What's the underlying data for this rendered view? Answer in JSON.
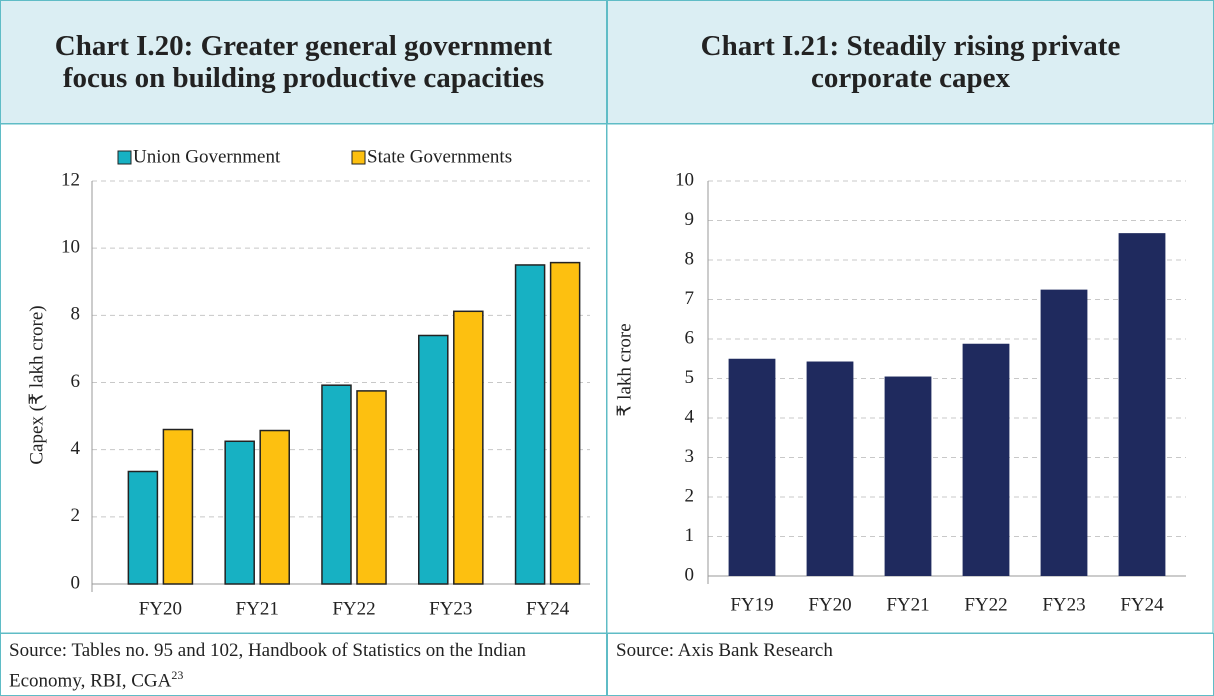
{
  "chart_data": [
    {
      "type": "bar",
      "title": "Chart I.20: Greater general government focus on building productive capacities",
      "source": "Source: Tables no. 95 and 102, Handbook of Statistics on the Indian Economy, RBI, CGA",
      "source_ref": "23",
      "ylabel": "Capex (₹ lakh crore)",
      "categories": [
        "FY20",
        "FY21",
        "FY22",
        "FY23",
        "FY24"
      ],
      "series": [
        {
          "name": "Union Government",
          "color": "#17b1c3",
          "values": [
            3.35,
            4.25,
            5.92,
            7.4,
            9.5
          ]
        },
        {
          "name": "State Governments",
          "color": "#fdc010",
          "values": [
            4.6,
            4.57,
            5.75,
            8.12,
            9.57
          ]
        }
      ],
      "ylim": [
        0,
        12
      ],
      "yticks": [
        0,
        2,
        4,
        6,
        8,
        10,
        12
      ],
      "grid": true,
      "legend": "top"
    },
    {
      "type": "bar",
      "title": "Chart I.21: Steadily rising private corporate capex",
      "source": "Source: Axis Bank Research",
      "ylabel": "₹ lakh crore",
      "categories": [
        "FY19",
        "FY20",
        "FY21",
        "FY22",
        "FY23",
        "FY24"
      ],
      "series": [
        {
          "color": "#1f2a5e",
          "values": [
            5.5,
            5.43,
            5.05,
            5.88,
            7.25,
            8.68
          ]
        }
      ],
      "ylim": [
        0,
        10
      ],
      "yticks": [
        0,
        1,
        2,
        3,
        4,
        5,
        6,
        7,
        8,
        9,
        10
      ],
      "grid": true
    }
  ]
}
